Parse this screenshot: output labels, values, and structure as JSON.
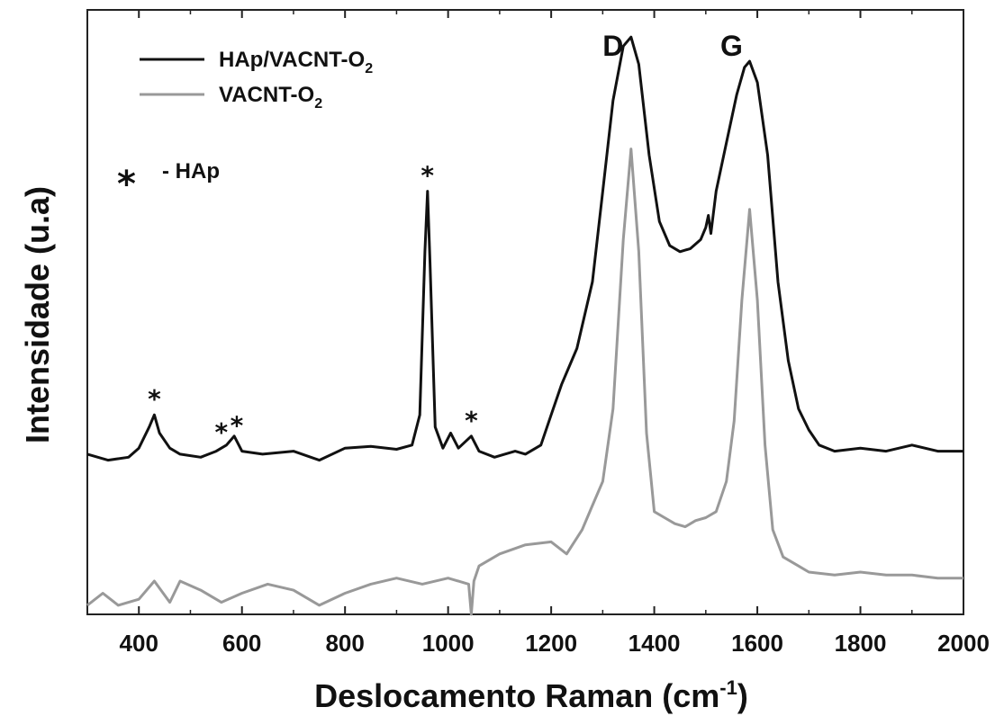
{
  "chart_data": {
    "type": "line",
    "xlabel_main": "Deslocamento Raman (cm",
    "xlabel_sup": "-1",
    "xlabel_end": ")",
    "ylabel": "Intensidade (u.a)",
    "xlim": [
      300,
      2000
    ],
    "ylim": [
      0,
      100
    ],
    "x_ticks": [
      400,
      600,
      800,
      1000,
      1200,
      1400,
      1600,
      1800,
      2000
    ],
    "y_ticks_shown": false,
    "legend": {
      "position": "top-left",
      "entries": [
        {
          "base": "HAp/VACNT-O",
          "sub": "2",
          "color": "#111111"
        },
        {
          "base": "VACNT-O",
          "sub": "2",
          "color": "#999999"
        }
      ]
    },
    "marker_note": {
      "symbol": "*",
      "text": "- HAp"
    },
    "peak_labels": [
      {
        "text": "D",
        "x": 1355
      },
      {
        "text": "G",
        "x": 1585
      }
    ],
    "hap_markers": [
      {
        "symbol": "*",
        "x": 430
      },
      {
        "symbol": "*",
        "x": 560
      },
      {
        "symbol": "*",
        "x": 590
      },
      {
        "symbol": "*",
        "x": 960
      },
      {
        "symbol": "*",
        "x": 1045
      }
    ],
    "series": [
      {
        "name": "HAp/VACNT-O2",
        "color": "#111111",
        "x": [
          300,
          340,
          380,
          400,
          420,
          430,
          440,
          460,
          480,
          520,
          550,
          570,
          585,
          600,
          640,
          700,
          750,
          800,
          850,
          900,
          930,
          945,
          955,
          960,
          965,
          975,
          990,
          1005,
          1020,
          1045,
          1060,
          1090,
          1110,
          1130,
          1150,
          1180,
          1200,
          1220,
          1250,
          1280,
          1300,
          1320,
          1340,
          1355,
          1370,
          1390,
          1410,
          1430,
          1450,
          1470,
          1490,
          1500,
          1505,
          1510,
          1520,
          1540,
          1560,
          1575,
          1585,
          1600,
          1620,
          1640,
          1660,
          1680,
          1700,
          1720,
          1750,
          1800,
          1850,
          1900,
          1950,
          2000
        ],
        "y": [
          26.5,
          25.5,
          26.0,
          27.5,
          31.0,
          33.0,
          30.0,
          27.5,
          26.5,
          26.0,
          27.0,
          28.0,
          29.5,
          27.0,
          26.5,
          27.0,
          25.5,
          27.5,
          27.8,
          27.3,
          28.0,
          33.0,
          60.0,
          70.0,
          58.0,
          31.0,
          27.5,
          30.0,
          27.5,
          29.5,
          27.0,
          26.0,
          26.5,
          27.0,
          26.5,
          28.0,
          33.0,
          38.0,
          44.0,
          55.0,
          70.0,
          85.0,
          94.0,
          95.5,
          91.0,
          76.0,
          65.0,
          61.0,
          60.0,
          60.5,
          62.0,
          64.0,
          66.0,
          63.0,
          70.0,
          78.0,
          86.0,
          90.5,
          91.5,
          88.0,
          76.0,
          55.0,
          42.0,
          34.0,
          30.5,
          28.0,
          27.0,
          27.5,
          27.0,
          28.0,
          27.0,
          27.0
        ]
      },
      {
        "name": "VACNT-O2",
        "color": "#999999",
        "x": [
          300,
          330,
          360,
          400,
          430,
          460,
          480,
          520,
          560,
          600,
          650,
          700,
          750,
          800,
          850,
          900,
          950,
          1000,
          1040,
          1045,
          1050,
          1060,
          1100,
          1150,
          1200,
          1230,
          1260,
          1280,
          1300,
          1320,
          1340,
          1355,
          1370,
          1385,
          1400,
          1420,
          1440,
          1460,
          1480,
          1500,
          1520,
          1540,
          1555,
          1570,
          1585,
          1600,
          1615,
          1630,
          1650,
          1680,
          1700,
          1750,
          1800,
          1850,
          1900,
          1950,
          2000
        ],
        "y": [
          1.5,
          3.5,
          1.5,
          2.5,
          5.5,
          2.0,
          5.5,
          4.0,
          2.0,
          3.5,
          5.0,
          4.0,
          1.5,
          3.5,
          5.0,
          6.0,
          5.0,
          6.0,
          5.0,
          0.0,
          5.5,
          8.0,
          10.0,
          11.5,
          12.0,
          10.0,
          14.0,
          18.0,
          22.0,
          34.0,
          62.0,
          77.0,
          60.0,
          30.0,
          17.0,
          16.0,
          15.0,
          14.5,
          15.5,
          16.0,
          17.0,
          22.0,
          32.0,
          52.0,
          67.0,
          52.0,
          28.0,
          14.0,
          9.5,
          8.0,
          7.0,
          6.5,
          7.0,
          6.5,
          6.5,
          6.0,
          6.0
        ]
      }
    ]
  }
}
